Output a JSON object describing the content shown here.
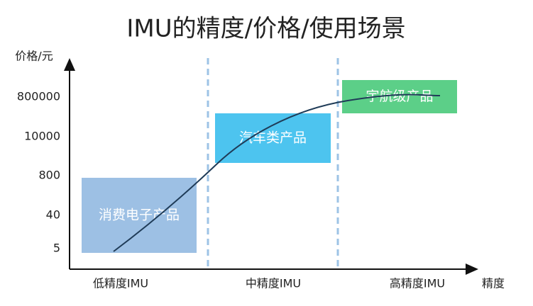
{
  "title": "IMU的精度/价格/使用场景",
  "y_axis_label": "价格/元",
  "x_axis_label": "精度",
  "y_ticks": [
    800000,
    10000,
    800,
    40,
    5
  ],
  "x_categories": [
    "低精度IMU",
    "中精度IMU",
    "高精度IMU"
  ],
  "boxes": [
    {
      "label": "消费电子产品",
      "color": "#9dc0e4"
    },
    {
      "label": "汽车类产品",
      "color": "#4dc4ef"
    },
    {
      "label": "宇航级产品",
      "color": "#5ccf88"
    }
  ]
}
